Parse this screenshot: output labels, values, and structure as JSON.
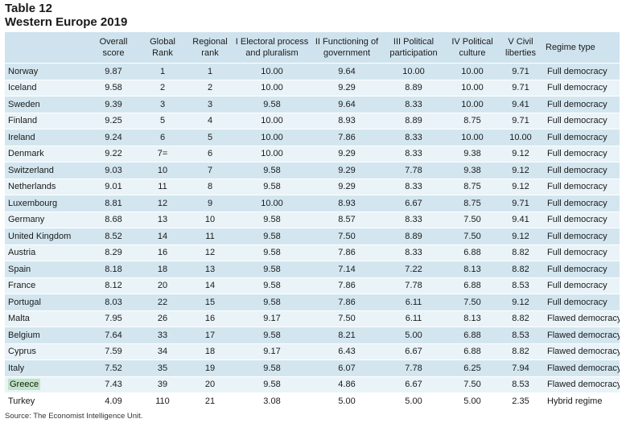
{
  "title": {
    "line1": "Table 12",
    "line2": "Western Europe 2019"
  },
  "headers": [
    {
      "line1": "",
      "line2": ""
    },
    {
      "line1": "Overall",
      "line2": "score"
    },
    {
      "line1": "Global",
      "line2": "Rank"
    },
    {
      "line1": "Regional",
      "line2": "rank"
    },
    {
      "line1": "I Electoral process",
      "line2": "and pluralism"
    },
    {
      "line1": "II Functioning of",
      "line2": "government"
    },
    {
      "line1": "III Political",
      "line2": "participation"
    },
    {
      "line1": "IV Political",
      "line2": "culture"
    },
    {
      "line1": "V Civil",
      "line2": "liberties"
    },
    {
      "line1": "Regime type",
      "line2": ""
    }
  ],
  "rows": [
    [
      "Norway",
      "9.87",
      "1",
      "1",
      "10.00",
      "9.64",
      "10.00",
      "10.00",
      "9.71",
      "Full democracy"
    ],
    [
      "Iceland",
      "9.58",
      "2",
      "2",
      "10.00",
      "9.29",
      "8.89",
      "10.00",
      "9.71",
      "Full democracy"
    ],
    [
      "Sweden",
      "9.39",
      "3",
      "3",
      "9.58",
      "9.64",
      "8.33",
      "10.00",
      "9.41",
      "Full democracy"
    ],
    [
      "Finland",
      "9.25",
      "5",
      "4",
      "10.00",
      "8.93",
      "8.89",
      "8.75",
      "9.71",
      "Full democracy"
    ],
    [
      "Ireland",
      "9.24",
      "6",
      "5",
      "10.00",
      "7.86",
      "8.33",
      "10.00",
      "10.00",
      "Full democracy"
    ],
    [
      "Denmark",
      "9.22",
      "7=",
      "6",
      "10.00",
      "9.29",
      "8.33",
      "9.38",
      "9.12",
      "Full democracy"
    ],
    [
      "Switzerland",
      "9.03",
      "10",
      "7",
      "9.58",
      "9.29",
      "7.78",
      "9.38",
      "9.12",
      "Full democracy"
    ],
    [
      "Netherlands",
      "9.01",
      "11",
      "8",
      "9.58",
      "9.29",
      "8.33",
      "8.75",
      "9.12",
      "Full democracy"
    ],
    [
      "Luxembourg",
      "8.81",
      "12",
      "9",
      "10.00",
      "8.93",
      "6.67",
      "8.75",
      "9.71",
      "Full democracy"
    ],
    [
      "Germany",
      "8.68",
      "13",
      "10",
      "9.58",
      "8.57",
      "8.33",
      "7.50",
      "9.41",
      "Full democracy"
    ],
    [
      "United Kingdom",
      "8.52",
      "14",
      "11",
      "9.58",
      "7.50",
      "8.89",
      "7.50",
      "9.12",
      "Full democracy"
    ],
    [
      "Austria",
      "8.29",
      "16",
      "12",
      "9.58",
      "7.86",
      "8.33",
      "6.88",
      "8.82",
      "Full democracy"
    ],
    [
      "Spain",
      "8.18",
      "18",
      "13",
      "9.58",
      "7.14",
      "7.22",
      "8.13",
      "8.82",
      "Full democracy"
    ],
    [
      "France",
      "8.12",
      "20",
      "14",
      "9.58",
      "7.86",
      "7.78",
      "6.88",
      "8.53",
      "Full democracy"
    ],
    [
      "Portugal",
      "8.03",
      "22",
      "15",
      "9.58",
      "7.86",
      "6.11",
      "7.50",
      "9.12",
      "Full democracy"
    ],
    [
      "Malta",
      "7.95",
      "26",
      "16",
      "9.17",
      "7.50",
      "6.11",
      "8.13",
      "8.82",
      "Flawed democracy"
    ],
    [
      "Belgium",
      "7.64",
      "33",
      "17",
      "9.58",
      "8.21",
      "5.00",
      "6.88",
      "8.53",
      "Flawed democracy"
    ],
    [
      "Cyprus",
      "7.59",
      "34",
      "18",
      "9.17",
      "6.43",
      "6.67",
      "6.88",
      "8.82",
      "Flawed democracy"
    ],
    [
      "Italy",
      "7.52",
      "35",
      "19",
      "9.58",
      "6.07",
      "7.78",
      "6.25",
      "7.94",
      "Flawed democracy"
    ],
    [
      "Greece",
      "7.43",
      "39",
      "20",
      "9.58",
      "4.86",
      "6.67",
      "7.50",
      "8.53",
      "Flawed democracy"
    ],
    [
      "Turkey",
      "4.09",
      "110",
      "21",
      "3.08",
      "5.00",
      "5.00",
      "5.00",
      "2.35",
      "Hybrid regime"
    ]
  ],
  "highlighted_country": "Greece",
  "source": "Source: The Economist Intelligence Unit.",
  "colors": {
    "header_bg": "#cfe3ee",
    "row_dark": "#d3e6f0",
    "row_light": "#e9f3f8",
    "highlight": "#bfe5c4"
  }
}
